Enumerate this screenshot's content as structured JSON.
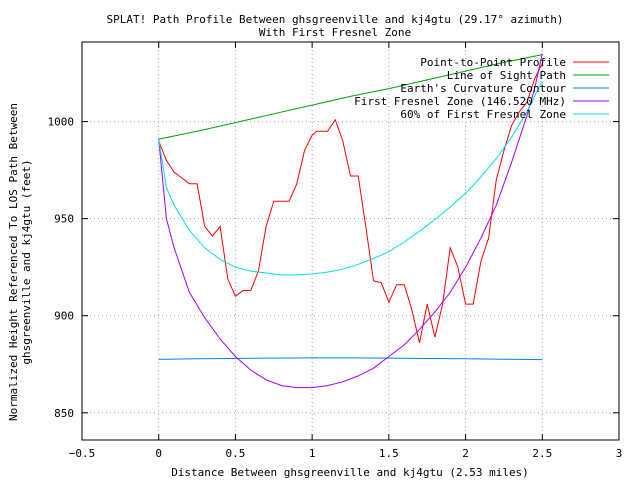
{
  "chart_data": {
    "type": "line",
    "title": "SPLAT! Path Profile Between ghsgreenville and kj4gtu (29.17° azimuth)",
    "subtitle": "With First Fresnel Zone",
    "xlabel": "Distance Between ghsgreenville and kj4gtu (2.53 miles)",
    "ylabel_line1": "Normalized Height Referenced To LOS Path Between",
    "ylabel_line2": "ghsgreenville and kj4gtu (feet)",
    "xlim": [
      -0.5,
      3
    ],
    "ylim": [
      836,
      1041
    ],
    "x_ticks": [
      -0.5,
      0,
      0.5,
      1,
      1.5,
      2,
      2.5,
      3
    ],
    "x_tick_labels": [
      "−0.5",
      "0",
      "0.5",
      "1",
      "1.5",
      "2",
      "2.5",
      "3"
    ],
    "y_ticks": [
      850,
      900,
      950,
      1000
    ],
    "y_tick_labels": [
      "850",
      "900",
      "950",
      "1000"
    ],
    "grid": true,
    "legend_position": "top-right",
    "series": [
      {
        "name": "Point-to-Point Profile",
        "color": "#ff0000",
        "x": [
          0,
          0.05,
          0.1,
          0.15,
          0.2,
          0.25,
          0.3,
          0.35,
          0.4,
          0.45,
          0.5,
          0.55,
          0.6,
          0.65,
          0.7,
          0.75,
          0.8,
          0.85,
          0.9,
          0.95,
          1.0,
          1.03,
          1.06,
          1.1,
          1.15,
          1.2,
          1.25,
          1.3,
          1.35,
          1.4,
          1.45,
          1.5,
          1.55,
          1.6,
          1.65,
          1.7,
          1.75,
          1.8,
          1.85,
          1.9,
          1.95,
          2.0,
          2.05,
          2.1,
          2.15,
          2.2,
          2.25,
          2.3,
          2.35,
          2.4,
          2.45,
          2.5
        ],
        "y": [
          990,
          980,
          974,
          971,
          968,
          968,
          946,
          941,
          946,
          919,
          910,
          913,
          913,
          923,
          946,
          959,
          959,
          959,
          968,
          985,
          993,
          995,
          995,
          995,
          1001,
          990,
          972,
          972,
          946,
          918,
          917,
          907,
          916,
          916,
          903,
          886,
          906,
          889,
          906,
          935,
          925,
          906,
          906,
          928,
          940,
          970,
          985,
          998,
          1005,
          1010,
          1022,
          1030
        ]
      },
      {
        "name": "Line of Sight Path",
        "color": "#00a000",
        "x": [
          0,
          0.25,
          0.5,
          0.75,
          1.0,
          1.25,
          1.5,
          1.75,
          2.0,
          2.25,
          2.5
        ],
        "y": [
          991,
          995,
          999.5,
          1004,
          1008.5,
          1013,
          1017,
          1021.5,
          1026,
          1030.5,
          1034.5
        ]
      },
      {
        "name": "Earth's Curvature Contour",
        "color": "#0080ff",
        "x": [
          0,
          0.25,
          0.5,
          0.75,
          1.0,
          1.25,
          1.5,
          1.75,
          2.0,
          2.25,
          2.5
        ],
        "y": [
          877.5,
          877.8,
          878.0,
          878.2,
          878.3,
          878.3,
          878.2,
          878.0,
          877.8,
          877.6,
          877.4
        ]
      },
      {
        "name": "First Fresnel Zone (146.520 MHz)",
        "color": "#a000ff",
        "x": [
          0,
          0.05,
          0.1,
          0.2,
          0.3,
          0.4,
          0.5,
          0.6,
          0.7,
          0.8,
          0.9,
          1.0,
          1.1,
          1.2,
          1.3,
          1.4,
          1.5,
          1.6,
          1.7,
          1.8,
          1.9,
          2.0,
          2.1,
          2.2,
          2.3,
          2.4,
          2.45,
          2.5
        ],
        "y": [
          991,
          950,
          935,
          912,
          899,
          888,
          879,
          872,
          867,
          864,
          863,
          863,
          864,
          866,
          869,
          873,
          879,
          885,
          893,
          902,
          912,
          925,
          940,
          957,
          979,
          1003,
          1017,
          1035
        ]
      },
      {
        "name": "60% of First Fresnel Zone",
        "color": "#00e0e0",
        "x": [
          0,
          0.05,
          0.1,
          0.2,
          0.3,
          0.4,
          0.5,
          0.6,
          0.7,
          0.8,
          0.9,
          1.0,
          1.1,
          1.2,
          1.3,
          1.4,
          1.5,
          1.6,
          1.7,
          1.8,
          1.9,
          2.0,
          2.1,
          2.2,
          2.3,
          2.4,
          2.45,
          2.5
        ],
        "y": [
          991,
          966,
          957,
          944,
          935,
          929,
          925,
          923,
          922,
          921,
          921,
          921.5,
          922.5,
          924,
          926.5,
          929.5,
          933,
          938,
          943.5,
          949.5,
          956,
          963,
          971.5,
          981,
          992,
          1005,
          1013,
          1021
        ]
      }
    ]
  }
}
